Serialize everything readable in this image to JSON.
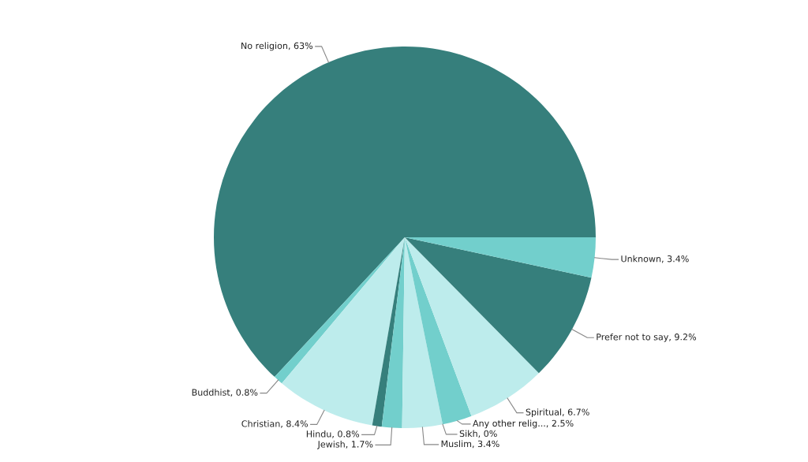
{
  "chart_data": {
    "type": "pie",
    "categories": [
      "No religion",
      "Buddhist",
      "Christian",
      "Hindu",
      "Jewish",
      "Muslim",
      "Sikh",
      "Any other relig...",
      "Spiritual",
      "Prefer not to say",
      "Unknown"
    ],
    "values": [
      63,
      0.8,
      8.4,
      0.8,
      1.7,
      3.4,
      0,
      2.5,
      6.7,
      9.2,
      3.4
    ],
    "value_labels": [
      "63%",
      "0.8%",
      "8.4%",
      "0.8%",
      "1.7%",
      "3.4%",
      "0%",
      "2.5%",
      "6.7%",
      "9.2%",
      "3.4%"
    ],
    "colors": [
      "#367f7c",
      "#72cfcc",
      "#bdecec",
      "#367f7c",
      "#72cfcc",
      "#bdecec",
      "#367f7c",
      "#72cfcc",
      "#bdecec",
      "#367f7c",
      "#72cfcc"
    ]
  }
}
